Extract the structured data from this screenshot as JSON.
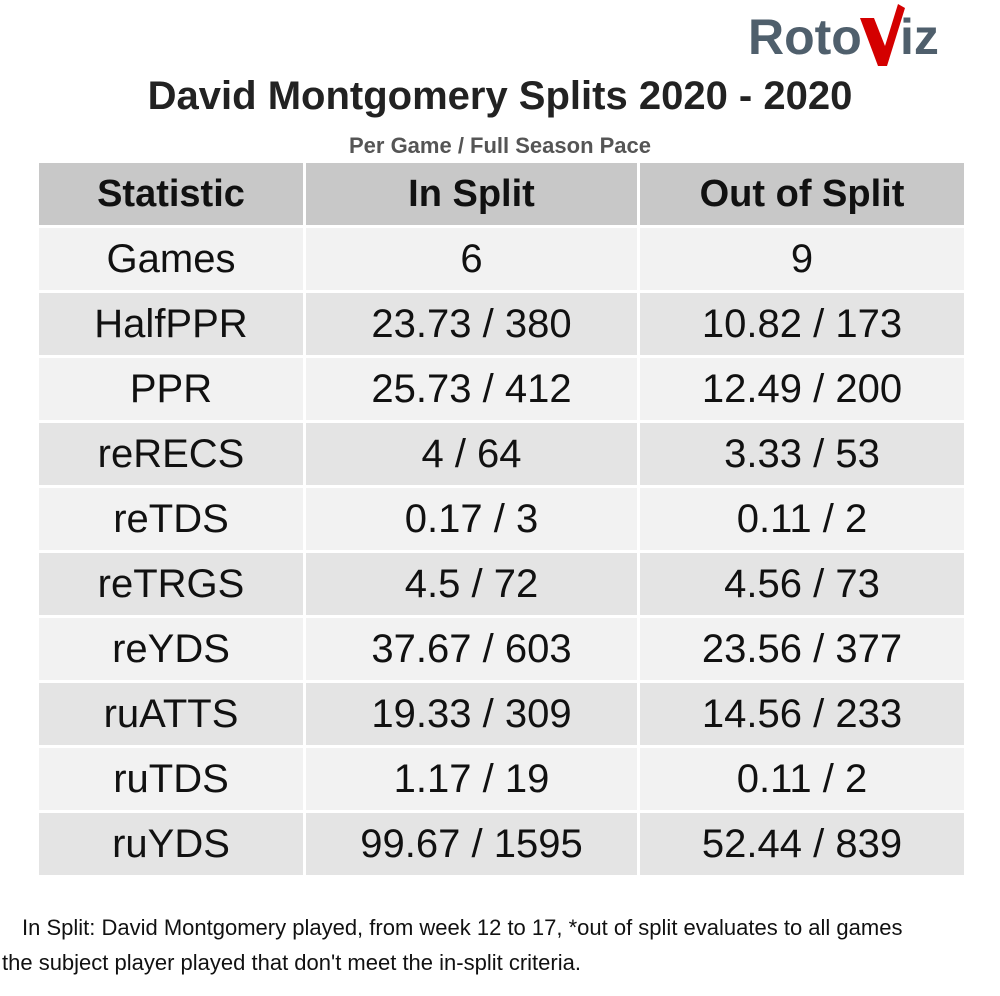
{
  "logo": {
    "text_left": "Roto",
    "text_right": "iz",
    "colors": {
      "text": "#4f5f6c",
      "accent": "#d40000"
    }
  },
  "chart_data": {
    "type": "table",
    "title": "David Montgomery Splits 2020 - 2020",
    "subtitle": "Per Game / Full Season Pace",
    "columns": [
      "Statistic",
      "In Split",
      "Out of Split"
    ],
    "rows": [
      [
        "Games",
        "6",
        "9"
      ],
      [
        "HalfPPR",
        "23.73 / 380",
        "10.82 / 173"
      ],
      [
        "PPR",
        "25.73 / 412",
        "12.49 / 200"
      ],
      [
        "reRECS",
        "4 / 64",
        "3.33 / 53"
      ],
      [
        "reTDS",
        "0.17 / 3",
        "0.11 / 2"
      ],
      [
        "reTRGS",
        "4.5 / 72",
        "4.56 / 73"
      ],
      [
        "reYDS",
        "37.67 / 603",
        "23.56 / 377"
      ],
      [
        "ruATTS",
        "19.33 / 309",
        "14.56 / 233"
      ],
      [
        "ruTDS",
        "1.17 / 19",
        "0.11 / 2"
      ],
      [
        "ruYDS",
        "99.67 / 1595",
        "52.44 / 839"
      ]
    ]
  },
  "footnote": {
    "line1": "In Split: David Montgomery played, from week 12 to 17,  *out of split evaluates to all games",
    "line2": "the subject player played that don't meet the in-split criteria."
  }
}
